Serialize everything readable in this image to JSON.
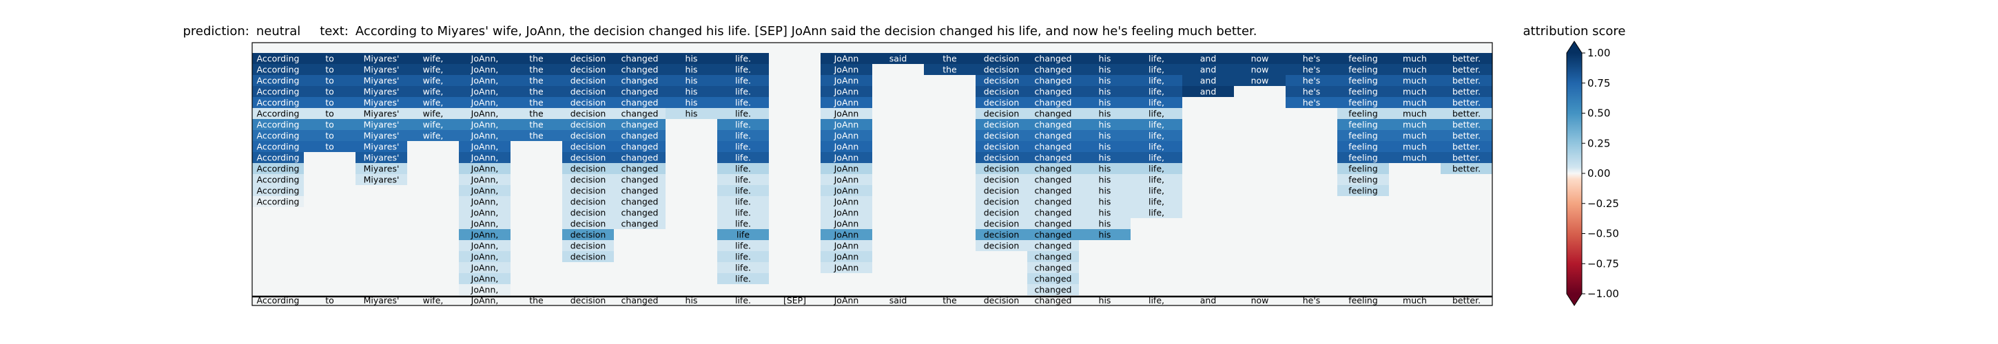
{
  "title": {
    "prediction_label": "prediction:",
    "prediction_value": "neutral",
    "text_label": "text:",
    "text_value": "According to Miyares' wife, JoAnn, the decision changed his life. [SEP] JoAnn said the decision changed his life, and now he's feeling much better."
  },
  "colorbar": {
    "label": "attribution score",
    "ticks": [
      "1.00",
      "0.75",
      "0.50",
      "0.25",
      "0.00",
      "−0.25",
      "−0.50",
      "−0.75",
      "−1.00"
    ],
    "tick_values": [
      1.0,
      0.75,
      0.5,
      0.25,
      0.0,
      -0.25,
      -0.5,
      -0.75,
      -1.0
    ],
    "colormap": "RdBu",
    "range": [
      -1,
      1
    ]
  },
  "chart_data": {
    "type": "heatmap",
    "tokens": [
      "According",
      "to",
      "Miyares'",
      "wife,",
      "JoAnn,",
      "the",
      "decision",
      "changed",
      "his",
      "life.",
      "[SEP]",
      "JoAnn",
      "said",
      "the",
      "decision",
      "changed",
      "his",
      "life,",
      "and",
      "now",
      "he's",
      "feeling",
      "much",
      "better."
    ],
    "rows": [
      [
        0.95,
        0.95,
        0.95,
        0.95,
        0.95,
        0.95,
        0.95,
        0.95,
        0.95,
        0.95,
        null,
        0.95,
        0.95,
        0.95,
        0.95,
        0.95,
        0.95,
        0.95,
        0.95,
        0.95,
        0.95,
        0.95,
        0.95,
        0.95
      ],
      [
        0.9,
        0.9,
        0.9,
        0.9,
        0.9,
        0.9,
        0.9,
        0.9,
        0.9,
        0.9,
        null,
        0.9,
        null,
        0.9,
        0.9,
        0.9,
        0.9,
        0.9,
        0.9,
        0.9,
        0.9,
        0.9,
        0.9,
        0.9
      ],
      [
        0.8,
        0.8,
        0.8,
        0.8,
        0.8,
        0.8,
        0.8,
        0.8,
        0.8,
        0.8,
        null,
        0.8,
        null,
        null,
        0.8,
        0.8,
        0.8,
        0.8,
        0.9,
        0.9,
        0.8,
        0.8,
        0.8,
        0.8
      ],
      [
        0.85,
        0.85,
        0.85,
        0.85,
        0.85,
        0.85,
        0.85,
        0.85,
        0.85,
        0.85,
        null,
        0.85,
        null,
        null,
        0.85,
        0.85,
        0.85,
        0.85,
        0.95,
        null,
        0.85,
        0.85,
        0.85,
        0.85
      ],
      [
        0.75,
        0.75,
        0.75,
        0.75,
        0.75,
        0.75,
        0.75,
        0.75,
        0.75,
        0.75,
        null,
        0.75,
        null,
        null,
        0.75,
        0.75,
        0.75,
        0.75,
        null,
        null,
        0.75,
        0.75,
        0.75,
        0.75
      ],
      [
        0.05,
        0.05,
        0.05,
        0.05,
        0.05,
        0.05,
        0.05,
        0.05,
        0.1,
        0.1,
        null,
        0.05,
        null,
        null,
        0.1,
        0.1,
        0.1,
        0.1,
        null,
        null,
        null,
        0.1,
        0.1,
        0.1
      ],
      [
        0.6,
        0.6,
        0.6,
        0.6,
        0.6,
        0.6,
        0.6,
        0.6,
        null,
        0.6,
        null,
        0.6,
        null,
        null,
        0.6,
        0.6,
        0.6,
        0.6,
        null,
        null,
        null,
        0.6,
        0.6,
        0.6
      ],
      [
        0.7,
        0.7,
        0.7,
        0.7,
        0.7,
        0.7,
        0.7,
        0.7,
        null,
        0.7,
        null,
        0.7,
        null,
        null,
        0.7,
        0.7,
        0.7,
        0.7,
        null,
        null,
        null,
        0.7,
        0.7,
        0.7
      ],
      [
        0.75,
        0.75,
        0.75,
        null,
        0.75,
        null,
        0.75,
        0.75,
        null,
        0.75,
        null,
        0.75,
        null,
        null,
        0.75,
        0.75,
        0.75,
        0.75,
        null,
        null,
        null,
        0.75,
        0.75,
        0.75
      ],
      [
        0.8,
        null,
        0.8,
        null,
        0.8,
        null,
        0.8,
        0.8,
        null,
        0.8,
        null,
        0.8,
        null,
        null,
        0.8,
        0.8,
        0.8,
        0.8,
        null,
        null,
        null,
        0.8,
        0.8,
        0.8
      ],
      [
        0.15,
        null,
        0.1,
        null,
        0.15,
        null,
        0.15,
        0.15,
        null,
        0.15,
        null,
        0.15,
        null,
        null,
        0.15,
        0.15,
        0.15,
        0.15,
        null,
        null,
        null,
        0.15,
        null,
        0.15
      ],
      [
        0.05,
        null,
        0.05,
        null,
        0.05,
        null,
        0.05,
        0.05,
        null,
        0.05,
        null,
        0.05,
        null,
        null,
        0.05,
        0.05,
        0.05,
        0.05,
        null,
        null,
        null,
        0.05,
        null,
        null
      ],
      [
        0.05,
        null,
        null,
        null,
        0.1,
        null,
        0.05,
        0.05,
        null,
        0.1,
        null,
        0.1,
        null,
        null,
        0.05,
        0.05,
        0.05,
        0.05,
        null,
        null,
        null,
        0.1,
        null,
        null
      ],
      [
        0.02,
        null,
        null,
        null,
        0.05,
        null,
        0.05,
        0.05,
        null,
        0.05,
        null,
        0.05,
        null,
        null,
        0.05,
        0.05,
        0.05,
        0.05,
        null,
        null,
        null,
        null,
        null,
        null
      ],
      [
        null,
        null,
        null,
        null,
        0.05,
        null,
        0.05,
        0.05,
        null,
        0.05,
        null,
        0.05,
        null,
        null,
        0.05,
        0.05,
        0.05,
        0.05,
        null,
        null,
        null,
        null,
        null,
        null
      ],
      [
        null,
        null,
        null,
        null,
        0.05,
        null,
        0.05,
        0.05,
        null,
        0.05,
        null,
        0.05,
        null,
        null,
        0.05,
        0.05,
        0.05,
        null,
        null,
        null,
        null,
        null,
        null,
        null
      ],
      [
        null,
        null,
        null,
        null,
        0.45,
        null,
        0.45,
        null,
        null,
        0.45,
        null,
        0.45,
        null,
        null,
        0.45,
        0.45,
        0.45,
        null,
        null,
        null,
        null,
        null,
        null,
        null
      ],
      [
        null,
        null,
        null,
        null,
        0.05,
        null,
        0.05,
        null,
        null,
        0.05,
        null,
        0.05,
        null,
        null,
        0.05,
        0.05,
        null,
        null,
        null,
        null,
        null,
        null,
        null,
        null
      ],
      [
        null,
        null,
        null,
        null,
        0.1,
        null,
        0.1,
        null,
        null,
        0.1,
        null,
        0.1,
        null,
        null,
        null,
        0.1,
        null,
        null,
        null,
        null,
        null,
        null,
        null,
        null
      ],
      [
        null,
        null,
        null,
        null,
        0.05,
        null,
        null,
        null,
        null,
        0.05,
        null,
        0.05,
        null,
        null,
        null,
        0.05,
        null,
        null,
        null,
        null,
        null,
        null,
        null,
        null
      ],
      [
        null,
        null,
        null,
        null,
        0.1,
        null,
        null,
        null,
        null,
        0.1,
        null,
        null,
        null,
        null,
        null,
        0.1,
        null,
        null,
        null,
        null,
        null,
        null,
        null,
        null
      ],
      [
        null,
        null,
        null,
        null,
        0.02,
        null,
        null,
        null,
        null,
        null,
        null,
        null,
        null,
        null,
        null,
        0.05,
        null,
        null,
        null,
        null,
        null,
        null,
        null,
        null
      ]
    ],
    "cell_labels": [
      [
        "According",
        "to",
        "Miyares'",
        "wife,",
        "JoAnn,",
        "the",
        "decision",
        "changed",
        "his",
        "life.",
        null,
        "JoAnn",
        "said",
        "the",
        "decision",
        "changed",
        "his",
        "life,",
        "and",
        "now",
        "he's",
        "feeling",
        "much",
        "better."
      ],
      [
        "According",
        "to",
        "Miyares'",
        "wife,",
        "JoAnn,",
        "the",
        "decision",
        "changed",
        "his",
        "life.",
        null,
        "JoAnn",
        null,
        "the",
        "decision",
        "changed",
        "his",
        "life,",
        "and",
        "now",
        "he's",
        "feeling",
        "much",
        "better."
      ],
      [
        "According",
        "to",
        "Miyares'",
        "wife,",
        "JoAnn,",
        "the",
        "decision",
        "changed",
        "his",
        "life.",
        null,
        "JoAnn",
        null,
        null,
        "decision",
        "changed",
        "his",
        "life,",
        "and",
        "now",
        "he's",
        "feeling",
        "much",
        "better."
      ],
      [
        "According",
        "to",
        "Miyares'",
        "wife,",
        "JoAnn,",
        "the",
        "decision",
        "changed",
        "his",
        "life.",
        null,
        "JoAnn",
        null,
        null,
        "decision",
        "changed",
        "his",
        "life,",
        "and",
        null,
        "he's",
        "feeling",
        "much",
        "better."
      ],
      [
        "According",
        "to",
        "Miyares'",
        "wife,",
        "JoAnn,",
        "the",
        "decision",
        "changed",
        "his",
        "life.",
        null,
        "JoAnn",
        null,
        null,
        "decision",
        "changed",
        "his",
        "life,",
        null,
        null,
        "he's",
        "feeling",
        "much",
        "better."
      ],
      [
        "According",
        "to",
        "Miyares'",
        "wife,",
        "JoAnn,",
        "the",
        "decision",
        "changed",
        "his",
        "life.",
        null,
        "JoAnn",
        null,
        null,
        "decision",
        "changed",
        "his",
        "life,",
        null,
        null,
        null,
        "feeling",
        "much",
        "better."
      ],
      [
        "According",
        "to",
        "Miyares'",
        "wife,",
        "JoAnn,",
        "the",
        "decision",
        "changed",
        null,
        "life.",
        null,
        "JoAnn",
        null,
        null,
        "decision",
        "changed",
        "his",
        "life,",
        null,
        null,
        null,
        "feeling",
        "much",
        "better."
      ],
      [
        "According",
        "to",
        "Miyares'",
        "wife,",
        "JoAnn,",
        "the",
        "decision",
        "changed",
        null,
        "life.",
        null,
        "JoAnn",
        null,
        null,
        "decision",
        "changed",
        "his",
        "life,",
        null,
        null,
        null,
        "feeling",
        "much",
        "better."
      ],
      [
        "According",
        "to",
        "Miyares'",
        null,
        "JoAnn,",
        null,
        "decision",
        "changed",
        null,
        "life.",
        null,
        "JoAnn",
        null,
        null,
        "decision",
        "changed",
        "his",
        "life,",
        null,
        null,
        null,
        "feeling",
        "much",
        "better."
      ],
      [
        "According",
        null,
        "Miyares'",
        null,
        "JoAnn,",
        null,
        "decision",
        "changed",
        null,
        "life.",
        null,
        "JoAnn",
        null,
        null,
        "decision",
        "changed",
        "his",
        "life,",
        null,
        null,
        null,
        "feeling",
        "much",
        "better."
      ],
      [
        "According",
        null,
        "Miyares'",
        null,
        "JoAnn,",
        null,
        "decision",
        "changed",
        null,
        "life.",
        null,
        "JoAnn",
        null,
        null,
        "decision",
        "changed",
        "his",
        "life,",
        null,
        null,
        null,
        "feeling",
        null,
        "better."
      ],
      [
        "According",
        null,
        "Miyares'",
        null,
        "JoAnn,",
        null,
        "decision",
        "changed",
        null,
        "life.",
        null,
        "JoAnn",
        null,
        null,
        "decision",
        "changed",
        "his",
        "life,",
        null,
        null,
        null,
        "feeling",
        null,
        null
      ],
      [
        "According",
        null,
        null,
        null,
        "JoAnn,",
        null,
        "decision",
        "changed",
        null,
        "life.",
        null,
        "JoAnn",
        null,
        null,
        "decision",
        "changed",
        "his",
        "life,",
        null,
        null,
        null,
        "feeling",
        null,
        null
      ],
      [
        "According",
        null,
        null,
        null,
        "JoAnn,",
        null,
        "decision",
        "changed",
        null,
        "life.",
        null,
        "JoAnn",
        null,
        null,
        "decision",
        "changed",
        "his",
        "life,",
        null,
        null,
        null,
        null,
        null,
        null
      ],
      [
        null,
        null,
        null,
        null,
        "JoAnn,",
        null,
        "decision",
        "changed",
        null,
        "life.",
        null,
        "JoAnn",
        null,
        null,
        "decision",
        "changed",
        "his",
        "life,",
        null,
        null,
        null,
        null,
        null,
        null
      ],
      [
        null,
        null,
        null,
        null,
        "JoAnn,",
        null,
        "decision",
        "changed",
        null,
        "life.",
        null,
        "JoAnn",
        null,
        null,
        "decision",
        "changed",
        "his",
        null,
        null,
        null,
        null,
        null,
        null,
        null
      ],
      [
        null,
        null,
        null,
        null,
        "JoAnn,",
        null,
        "decision",
        null,
        null,
        "life",
        null,
        "JoAnn",
        null,
        null,
        "decision",
        "changed",
        "his",
        null,
        null,
        null,
        null,
        null,
        null,
        null
      ],
      [
        null,
        null,
        null,
        null,
        "JoAnn,",
        null,
        "decision",
        null,
        null,
        "life.",
        null,
        "JoAnn",
        null,
        null,
        "decision",
        "changed",
        null,
        null,
        null,
        null,
        null,
        null,
        null,
        null
      ],
      [
        null,
        null,
        null,
        null,
        "JoAnn,",
        null,
        "decision",
        null,
        null,
        "life.",
        null,
        "JoAnn",
        null,
        null,
        null,
        "changed",
        null,
        null,
        null,
        null,
        null,
        null,
        null,
        null
      ],
      [
        null,
        null,
        null,
        null,
        "JoAnn,",
        null,
        null,
        null,
        null,
        "life.",
        null,
        "JoAnn",
        null,
        null,
        null,
        "changed",
        null,
        null,
        null,
        null,
        null,
        null,
        null,
        null
      ],
      [
        null,
        null,
        null,
        null,
        "JoAnn,",
        null,
        null,
        null,
        null,
        "life.",
        null,
        null,
        null,
        null,
        null,
        "changed",
        null,
        null,
        null,
        null,
        null,
        null,
        null,
        null
      ],
      [
        null,
        null,
        null,
        null,
        "JoAnn,",
        null,
        null,
        null,
        null,
        null,
        null,
        null,
        null,
        null,
        null,
        "changed",
        null,
        null,
        null,
        null,
        null,
        null,
        null,
        null
      ]
    ],
    "bottom_row_labels": [
      "According",
      "to",
      "Miyares'",
      "wife,",
      "JoAnn,",
      "the",
      "decision",
      "changed",
      "his",
      "life.",
      "[SEP]",
      "JoAnn",
      "said",
      "the",
      "decision",
      "changed",
      "his",
      "life,",
      "and",
      "now",
      "he's",
      "feeling",
      "much",
      "better."
    ],
    "background": "#f4f6f6"
  }
}
